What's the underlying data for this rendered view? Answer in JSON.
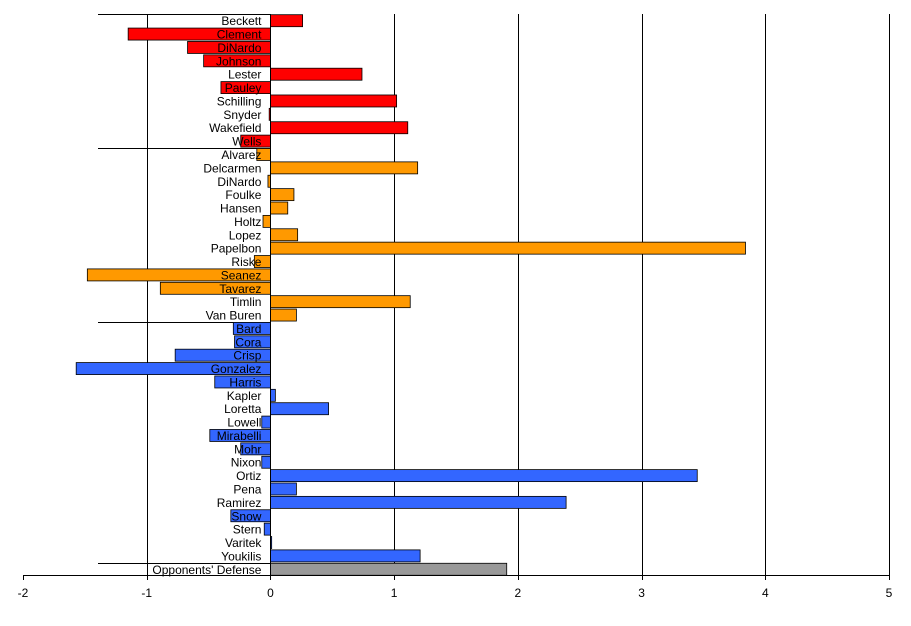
{
  "chart_data": {
    "type": "bar",
    "orientation": "horizontal",
    "title": "",
    "xlabel": "",
    "ylabel": "",
    "xlim": [
      -2,
      5
    ],
    "x_ticks": [
      "-2",
      "-1",
      "0",
      "1",
      "2",
      "3",
      "4",
      "5"
    ],
    "grid": "vertical gridlines at each integer",
    "legend": "none",
    "categories": [
      "Beckett",
      "Clement",
      "DiNardo",
      "Johnson",
      "Lester",
      "Pauley",
      "Schilling",
      "Snyder",
      "Wakefield",
      "Wells",
      "Alvarez",
      "Delcarmen",
      "DiNardo",
      "Foulke",
      "Hansen",
      "Holtz",
      "Lopez",
      "Papelbon",
      "Riske",
      "Seanez",
      "Tavarez",
      "Timlin",
      "Van Buren",
      "Bard",
      "Cora",
      "Crisp",
      "Gonzalez",
      "Harris",
      "Kapler",
      "Loretta",
      "Lowell",
      "Mirabelli",
      "Mohr",
      "Nixon",
      "Ortiz",
      "Pena",
      "Ramirez",
      "Snow",
      "Stern",
      "Varitek",
      "Youkilis",
      "Opponents' Defense"
    ],
    "values": [
      0.26,
      -1.15,
      -0.67,
      -0.54,
      0.74,
      -0.4,
      1.02,
      -0.01,
      1.11,
      -0.24,
      -0.11,
      1.19,
      -0.02,
      0.19,
      0.14,
      -0.06,
      0.22,
      3.84,
      -0.13,
      -1.48,
      -0.89,
      1.13,
      0.21,
      -0.3,
      -0.29,
      -0.77,
      -1.57,
      -0.45,
      0.04,
      0.47,
      -0.07,
      -0.49,
      -0.24,
      -0.07,
      3.45,
      0.21,
      2.39,
      -0.32,
      -0.05,
      0.01,
      1.21,
      1.91
    ],
    "groups": [
      {
        "start": 0,
        "end": 9,
        "color": "#ff0000"
      },
      {
        "start": 10,
        "end": 22,
        "color": "#ff9900"
      },
      {
        "start": 23,
        "end": 40,
        "color": "#3366ff"
      },
      {
        "start": 41,
        "end": 41,
        "color": "#999999"
      }
    ],
    "colors": {
      "red_group": "#ff0000",
      "orange_group": "#ff9900",
      "blue_group": "#3366ff",
      "gray_group": "#999999",
      "gridline": "#000000",
      "bar_outline": "#000000"
    }
  }
}
